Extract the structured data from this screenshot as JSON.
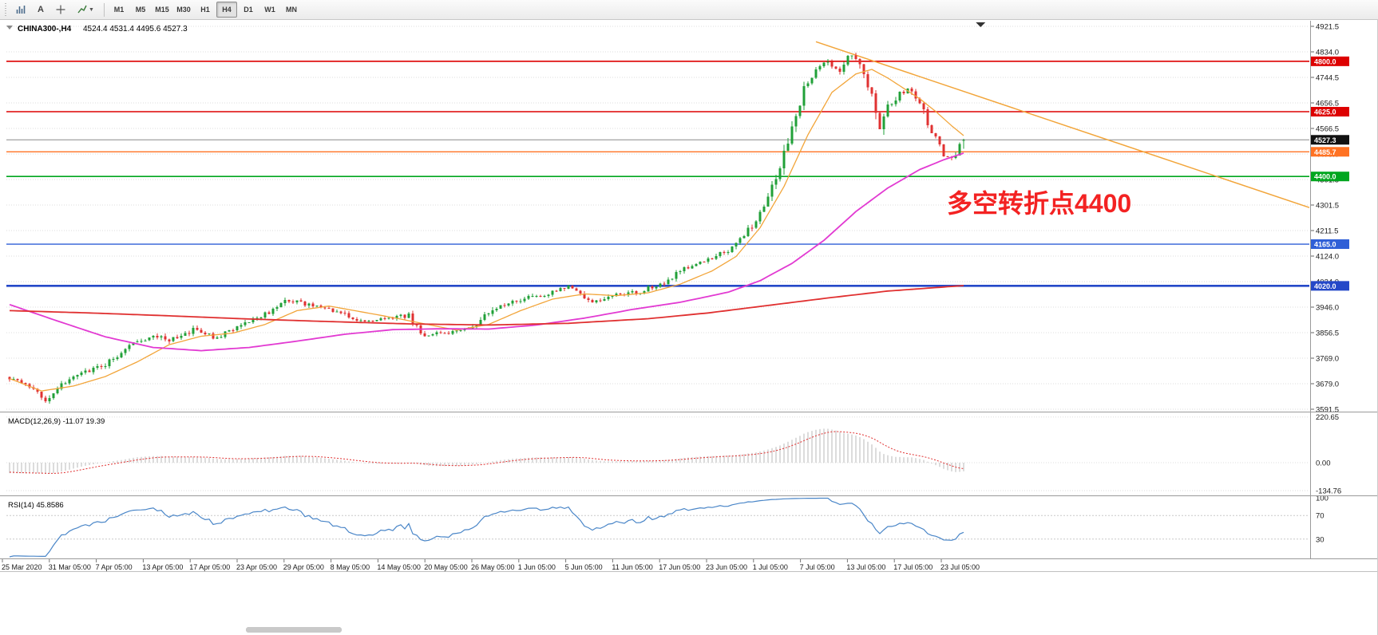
{
  "toolbar": {
    "text_tool_label": "A",
    "timeframes": [
      "M1",
      "M5",
      "M15",
      "M30",
      "H1",
      "H4",
      "D1",
      "W1",
      "MN"
    ],
    "active_timeframe": "H4"
  },
  "chart": {
    "symbol_label": "CHINA300-,H4",
    "ohlc_label": "4524.4 4531.4 4495.6 4527.3",
    "annotation": {
      "text": "多空转折点4400",
      "color": "#f32222"
    },
    "colors": {
      "up": "#21a038",
      "down": "#e03232",
      "grid": "#dedede",
      "background": "#ffffff"
    },
    "price_axis_labels": [
      "4921.5",
      "4834.0",
      "4744.5",
      "4656.5",
      "4566.5",
      "4479.0",
      "4391.5",
      "4301.5",
      "4211.5",
      "4124.0",
      "4034.0",
      "3946.0",
      "3856.5",
      "3769.0",
      "3679.0",
      "3591.5"
    ],
    "levels": [
      {
        "label": "4800.0",
        "price": 4800.0,
        "line_color": "#dd0000",
        "box_color": "#dd0000",
        "width": 1.6,
        "current": false
      },
      {
        "label": "4625.0",
        "price": 4625.0,
        "line_color": "#dd0000",
        "box_color": "#dd0000",
        "width": 1.6,
        "current": false
      },
      {
        "label": "4527.3",
        "price": 4527.3,
        "line_color": "#8a8a8a",
        "box_color": "#111111",
        "width": 1,
        "current": true
      },
      {
        "label": "4485.7",
        "price": 4485.7,
        "line_color": "#ff7223",
        "box_color": "#ff7223",
        "width": 1.4,
        "current": false
      },
      {
        "label": "4400.0",
        "price": 4400.0,
        "line_color": "#00a61f",
        "box_color": "#00a61f",
        "width": 1.6,
        "current": false
      },
      {
        "label": "4165.0",
        "price": 4165.0,
        "line_color": "#2f5fd7",
        "box_color": "#2f5fd7",
        "width": 1.4,
        "current": false
      },
      {
        "label": "4020.0",
        "price": 4020.0,
        "line_color": "#2448c8",
        "box_color": "#2448c8",
        "width": 2.6,
        "current": false
      }
    ],
    "trendline": {
      "from_bar": 202,
      "from_price": 4868,
      "to_price": 4292,
      "color": "#f2a53a"
    }
  },
  "chart_data": {
    "type": "candlestick",
    "title": "CHINA300- H4",
    "ylim": [
      3591.5,
      4921.5
    ],
    "bars": 240,
    "seed": 9,
    "price_keyframes": [
      [
        0,
        3700
      ],
      [
        5,
        3665
      ],
      [
        9,
        3625
      ],
      [
        13,
        3680
      ],
      [
        18,
        3718
      ],
      [
        24,
        3748
      ],
      [
        30,
        3812
      ],
      [
        36,
        3852
      ],
      [
        40,
        3828
      ],
      [
        46,
        3868
      ],
      [
        52,
        3838
      ],
      [
        58,
        3888
      ],
      [
        64,
        3922
      ],
      [
        70,
        3972
      ],
      [
        76,
        3952
      ],
      [
        82,
        3928
      ],
      [
        88,
        3898
      ],
      [
        94,
        3906
      ],
      [
        100,
        3916
      ],
      [
        104,
        3846
      ],
      [
        110,
        3860
      ],
      [
        116,
        3876
      ],
      [
        122,
        3948
      ],
      [
        128,
        3972
      ],
      [
        134,
        3988
      ],
      [
        140,
        4014
      ],
      [
        146,
        3966
      ],
      [
        152,
        3988
      ],
      [
        158,
        4000
      ],
      [
        164,
        4034
      ],
      [
        170,
        4084
      ],
      [
        176,
        4118
      ],
      [
        182,
        4158
      ],
      [
        186,
        4230
      ],
      [
        190,
        4330
      ],
      [
        193,
        4420
      ],
      [
        196,
        4580
      ],
      [
        199,
        4700
      ],
      [
        202,
        4780
      ],
      [
        205,
        4800
      ],
      [
        208,
        4768
      ],
      [
        211,
        4830
      ],
      [
        213,
        4798
      ],
      [
        216,
        4690
      ],
      [
        218,
        4556
      ],
      [
        220,
        4640
      ],
      [
        223,
        4688
      ],
      [
        226,
        4706
      ],
      [
        228,
        4656
      ],
      [
        231,
        4556
      ],
      [
        234,
        4478
      ],
      [
        236,
        4462
      ],
      [
        238,
        4502
      ],
      [
        239,
        4527.3
      ]
    ],
    "last_ohlc": {
      "open": 4524.4,
      "high": 4531.4,
      "low": 4495.6,
      "close": 4527.3
    },
    "pre_trend": {
      "from": 3960,
      "to": 3710,
      "bars": 30
    },
    "moving_averages": [
      {
        "name": "ma-fast-orange",
        "color": "#f2a53a",
        "width": 1.3,
        "points": [
          [
            0,
            3698
          ],
          [
            8,
            3655
          ],
          [
            16,
            3672
          ],
          [
            24,
            3705
          ],
          [
            32,
            3756
          ],
          [
            40,
            3816
          ],
          [
            48,
            3845
          ],
          [
            56,
            3856
          ],
          [
            64,
            3886
          ],
          [
            72,
            3934
          ],
          [
            80,
            3950
          ],
          [
            88,
            3930
          ],
          [
            96,
            3910
          ],
          [
            104,
            3888
          ],
          [
            112,
            3866
          ],
          [
            120,
            3886
          ],
          [
            128,
            3934
          ],
          [
            136,
            3974
          ],
          [
            144,
            3992
          ],
          [
            152,
            3986
          ],
          [
            160,
            3996
          ],
          [
            168,
            4026
          ],
          [
            176,
            4072
          ],
          [
            182,
            4122
          ],
          [
            188,
            4222
          ],
          [
            194,
            4365
          ],
          [
            200,
            4545
          ],
          [
            206,
            4692
          ],
          [
            212,
            4756
          ],
          [
            216,
            4772
          ],
          [
            220,
            4742
          ],
          [
            224,
            4706
          ],
          [
            228,
            4670
          ],
          [
            232,
            4626
          ],
          [
            236,
            4576
          ],
          [
            239,
            4542
          ]
        ]
      },
      {
        "name": "ma-mid-magenta",
        "color": "#e23ad2",
        "width": 1.8,
        "points": [
          [
            0,
            3955
          ],
          [
            12,
            3898
          ],
          [
            24,
            3843
          ],
          [
            36,
            3806
          ],
          [
            48,
            3795
          ],
          [
            60,
            3806
          ],
          [
            72,
            3828
          ],
          [
            84,
            3852
          ],
          [
            96,
            3868
          ],
          [
            108,
            3871
          ],
          [
            120,
            3870
          ],
          [
            132,
            3884
          ],
          [
            144,
            3908
          ],
          [
            156,
            3938
          ],
          [
            168,
            3963
          ],
          [
            180,
            3998
          ],
          [
            188,
            4038
          ],
          [
            196,
            4098
          ],
          [
            204,
            4178
          ],
          [
            212,
            4278
          ],
          [
            220,
            4360
          ],
          [
            228,
            4424
          ],
          [
            234,
            4458
          ],
          [
            239,
            4481
          ]
        ]
      },
      {
        "name": "ma-slow-red",
        "color": "#e03030",
        "width": 1.8,
        "points": [
          [
            0,
            3934
          ],
          [
            20,
            3926
          ],
          [
            40,
            3916
          ],
          [
            60,
            3905
          ],
          [
            80,
            3896
          ],
          [
            100,
            3888
          ],
          [
            120,
            3884
          ],
          [
            140,
            3890
          ],
          [
            160,
            3906
          ],
          [
            175,
            3926
          ],
          [
            190,
            3952
          ],
          [
            205,
            3978
          ],
          [
            220,
            4002
          ],
          [
            239,
            4021
          ]
        ]
      }
    ]
  },
  "macd": {
    "label": "MACD(12,26,9) -11.07 19.39",
    "params": [
      12,
      26,
      9
    ],
    "values": [
      -11.07,
      19.39
    ],
    "axis": [
      {
        "label": "220.65",
        "value": 220.65
      },
      {
        "label": "0.00",
        "value": 0
      },
      {
        "label": "-134.76",
        "value": -134.76
      }
    ],
    "histogram_color": "#b8b8b8",
    "signal_color": "#e03030"
  },
  "rsi": {
    "label": "RSI(14) 45.8586",
    "period": 14,
    "value": 45.8586,
    "axis": [
      {
        "label": "100",
        "value": 100,
        "line": false
      },
      {
        "label": "70",
        "value": 70,
        "line": true
      },
      {
        "label": "30",
        "value": 30,
        "line": true
      }
    ],
    "line_color": "#4a86c8"
  },
  "time_axis": {
    "labels": [
      "25 Mar 2020",
      "31 Mar 05:00",
      "7 Apr 05:00",
      "13 Apr 05:00",
      "17 Apr 05:00",
      "23 Apr 05:00",
      "29 Apr 05:00",
      "8 May 05:00",
      "14 May 05:00",
      "20 May 05:00",
      "26 May 05:00",
      "1 Jun 05:00",
      "5 Jun 05:00",
      "11 Jun 05:00",
      "17 Jun 05:00",
      "23 Jun 05:00",
      "1 Jul 05:00",
      "7 Jul 05:00",
      "13 Jul 05:00",
      "17 Jul 05:00",
      "23 Jul 05:00"
    ]
  }
}
